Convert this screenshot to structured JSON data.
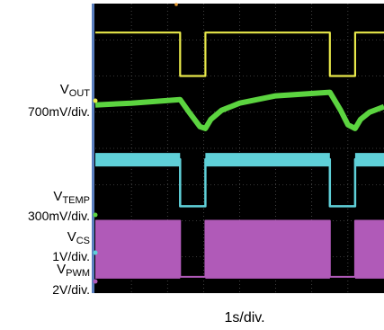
{
  "chart_data": {
    "type": "line",
    "xlabel": "1s/div.",
    "grid": true,
    "channels": [
      {
        "name_main": "V",
        "name_sub": "OUT",
        "scale": "700mV/div.",
        "color": "#e8e84a"
      },
      {
        "name_main": "V",
        "name_sub": "TEMP",
        "scale": "300mV/div.",
        "color": "#5fd0d8"
      },
      {
        "name_main": "V",
        "name_sub": "CS",
        "scale": "1V/div.",
        "color": "#5fd0d8"
      },
      {
        "name_main": "V",
        "name_sub": "PWM",
        "scale": "2V/div.",
        "color": "#b05ab8"
      }
    ],
    "series": [
      {
        "name": "VOUT",
        "color": "#e8e84a",
        "x": [
          0,
          2.35,
          2.35,
          3.05,
          3.05,
          6.5,
          6.5,
          7.2,
          7.2,
          8
        ],
        "y": [
          7.2,
          7.2,
          6.0,
          6.0,
          7.2,
          7.2,
          6.0,
          6.0,
          7.2,
          7.2
        ]
      },
      {
        "name": "green",
        "color": "#5cd440",
        "x": [
          0,
          1.0,
          2.35,
          2.6,
          2.9,
          3.05,
          3.2,
          3.5,
          4.0,
          5.0,
          6.5,
          6.8,
          7.0,
          7.2,
          7.35,
          7.6,
          8
        ],
        "y": [
          5.2,
          5.25,
          5.35,
          5.0,
          4.6,
          4.55,
          4.8,
          5.05,
          5.25,
          5.45,
          5.55,
          5.05,
          4.65,
          4.55,
          4.8,
          5.0,
          5.15
        ]
      },
      {
        "name": "VTEMP",
        "color": "#5fd0d8",
        "x": [
          0,
          2.35,
          2.35,
          3.05,
          3.05,
          6.5,
          6.5,
          7.2,
          7.2,
          8
        ],
        "y": [
          3.7,
          3.7,
          2.4,
          2.4,
          3.7,
          3.7,
          2.4,
          2.4,
          3.7,
          3.7
        ]
      },
      {
        "name": "VPWM",
        "color": "#b05ab8",
        "x": [
          0,
          2.35,
          2.35,
          3.05,
          3.05,
          6.5,
          6.5,
          7.2,
          7.2,
          8
        ],
        "y": [
          2.0,
          2.0,
          0.45,
          0.45,
          2.0,
          2.0,
          0.45,
          0.45,
          2.0,
          2.0
        ]
      }
    ]
  }
}
